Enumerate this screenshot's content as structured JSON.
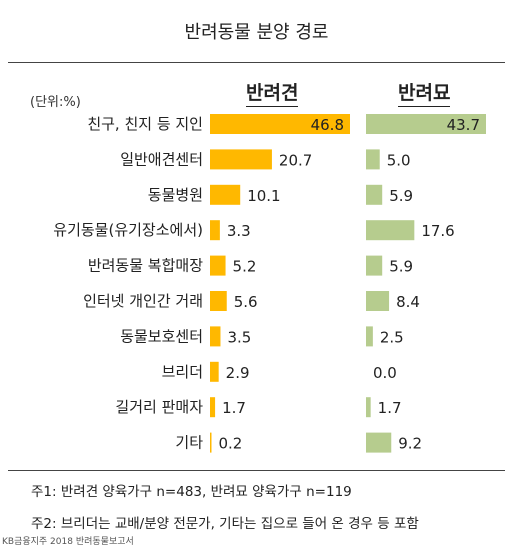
{
  "chart_data": {
    "type": "bar",
    "title": "반려동물 분양 경로",
    "unit_label": "(단위:%)",
    "categories": [
      "친구, 친지 등 지인",
      "일반애견센터",
      "동물병원",
      "유기동물(유기장소에서)",
      "반려동물 복합매장",
      "인터넷 개인간 거래",
      "동물보호센터",
      "브리더",
      "길거리 판매자",
      "기타"
    ],
    "series": [
      {
        "name": "반려견",
        "color": "#FFB800",
        "values": [
          46.8,
          20.7,
          10.1,
          3.3,
          5.2,
          5.6,
          3.5,
          2.9,
          1.7,
          0.2
        ],
        "labels": [
          "46.8",
          "20.7",
          "10.1",
          "3.3",
          "5.2",
          "5.6",
          "3.5",
          "2.9",
          "1.7",
          "0.2"
        ]
      },
      {
        "name": "반려묘",
        "color": "#B6CC8E",
        "values": [
          43.7,
          5.0,
          5.9,
          17.6,
          5.9,
          8.4,
          2.5,
          0.0,
          1.7,
          9.2
        ],
        "labels": [
          "43.7",
          "5.0",
          "5.9",
          "17.6",
          "5.9",
          "8.4",
          "2.5",
          "0.0",
          "1.7",
          "9.2"
        ]
      }
    ]
  },
  "notes": {
    "note1": "주1: 반려견 양육가구 n=483, 반려묘 양육가구 n=119",
    "note2": "주2: 브리더는 교배/분양 전문가, 기타는 집으로 들어 온 경우 등 포함",
    "source": "KB금융지주 2018 반려동물보고서"
  }
}
